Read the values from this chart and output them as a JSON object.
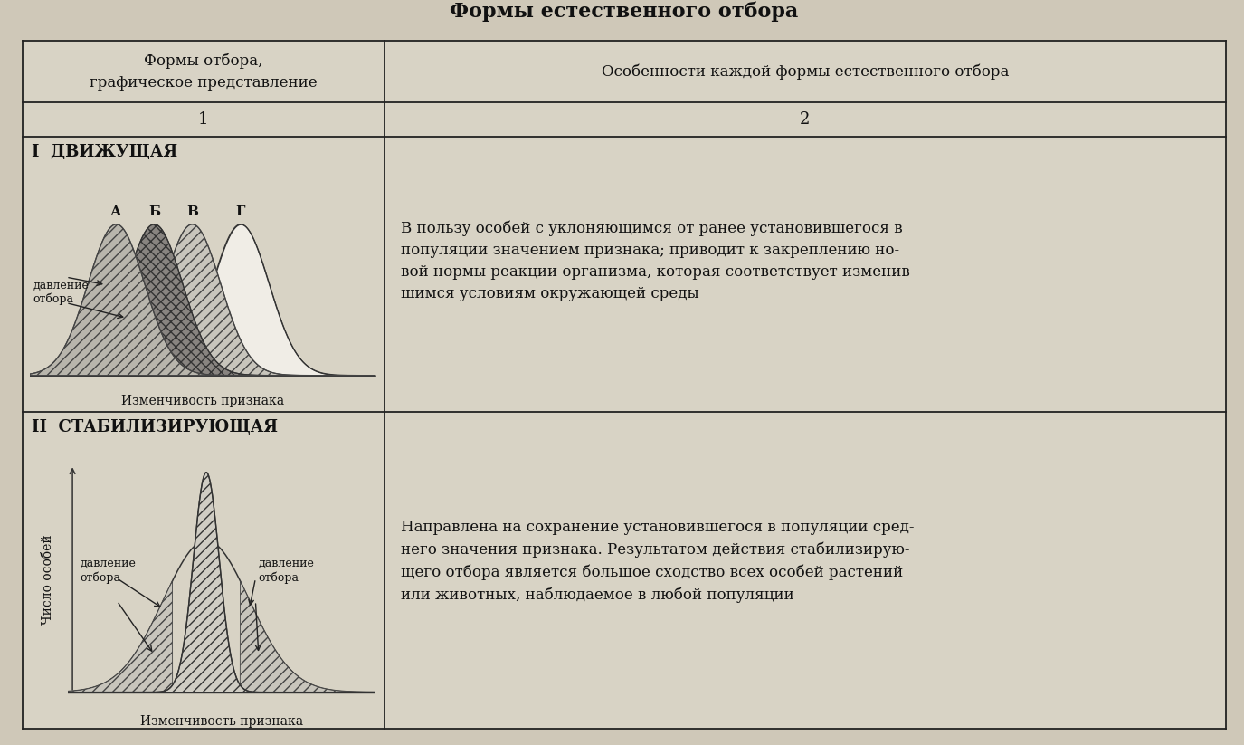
{
  "title": "Формы естественного отбора",
  "col1_header": "Формы отбора,\nграфическое представление",
  "col2_header": "Особенности каждой формы естественного отбора",
  "row_num1": "1",
  "row_num2": "2",
  "section1_title": "I  ДВИЖУЩАЯ",
  "section1_labels": [
    "А",
    "Б",
    "В",
    "Г"
  ],
  "section1_xlabel": "Изменчивость признака",
  "section1_arrow_text": "давление\nотбора",
  "section1_description": "В пользу особей с уклоняющимся от ранее установившегося в\nпопуляции значением признака; приводит к закреплению но-\nвой нормы реакции организма, которая соответствует изменив-\nшимся условиям окружающей среды",
  "section2_title": "II  СТАБИЛИЗИРУЮЩАЯ",
  "section2_ylabel": "Число особей",
  "section2_xlabel": "Изменчивость признака",
  "section2_arrow_left": "давление\nотбора",
  "section2_arrow_right": "давление\nотбора",
  "section2_description": "Направлена на сохранение установившегося в популяции сред-\nнего значения признака. Результатом действия стабилизирую-\nщего отбора является большое сходство всех особей растений\nили животных, наблюдаемое в любой популяции",
  "bg_color": "#cfc8b8",
  "table_bg": "#ddd8ca",
  "table_cell_bg": "#d8d3c5",
  "line_color": "#222222",
  "text_color": "#111111"
}
